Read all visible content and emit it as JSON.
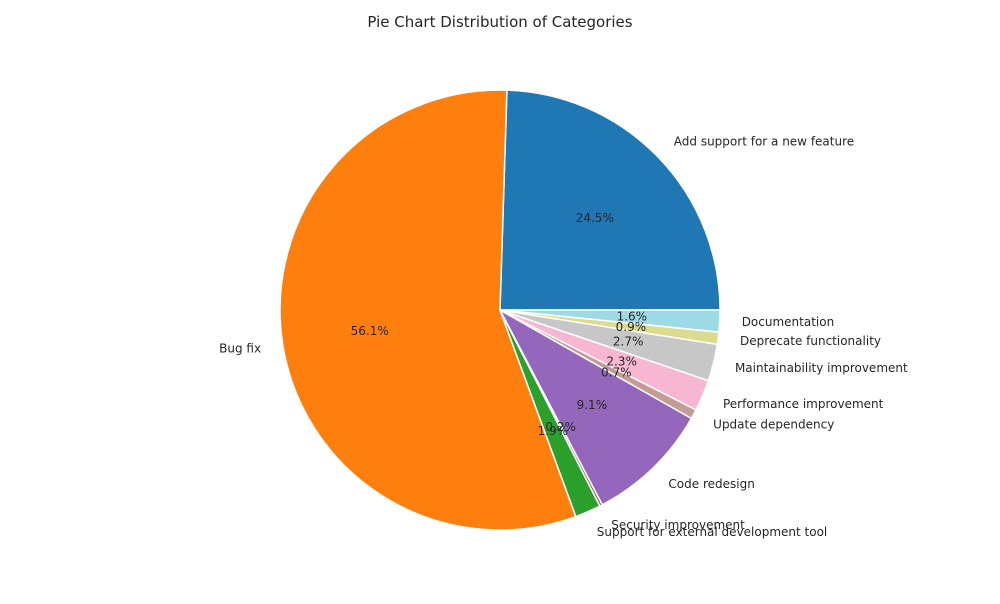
{
  "chart_data": {
    "type": "pie",
    "title": "Pie Chart Distribution of Categories",
    "start_angle_deg": 0,
    "direction": "counterclockwise",
    "slices": [
      {
        "label": "Add support for a new feature",
        "value": 24.5,
        "pct_label": "24.5%",
        "color": "#1f77b4"
      },
      {
        "label": "Bug fix",
        "value": 56.1,
        "pct_label": "56.1%",
        "color": "#ff7f0e"
      },
      {
        "label": "Support for external development tool",
        "value": 1.9,
        "pct_label": "1.9%",
        "color": "#2ca02c"
      },
      {
        "label": "Security improvement",
        "value": 0.2,
        "pct_label": "0.2%",
        "color": "#8c564b"
      },
      {
        "label": "Code redesign",
        "value": 9.1,
        "pct_label": "9.1%",
        "color": "#9467bd"
      },
      {
        "label": "Update dependency",
        "value": 0.7,
        "pct_label": "0.7%",
        "color": "#c49c94"
      },
      {
        "label": "Performance improvement",
        "value": 2.3,
        "pct_label": "2.3%",
        "color": "#f7b6d2"
      },
      {
        "label": "Maintainability improvement",
        "value": 2.7,
        "pct_label": "2.7%",
        "color": "#c7c7c7"
      },
      {
        "label": "Deprecate functionality",
        "value": 0.9,
        "pct_label": "0.9%",
        "color": "#dbdb8d"
      },
      {
        "label": "Documentation",
        "value": 1.6,
        "pct_label": "1.6%",
        "color": "#9edae5"
      }
    ]
  }
}
